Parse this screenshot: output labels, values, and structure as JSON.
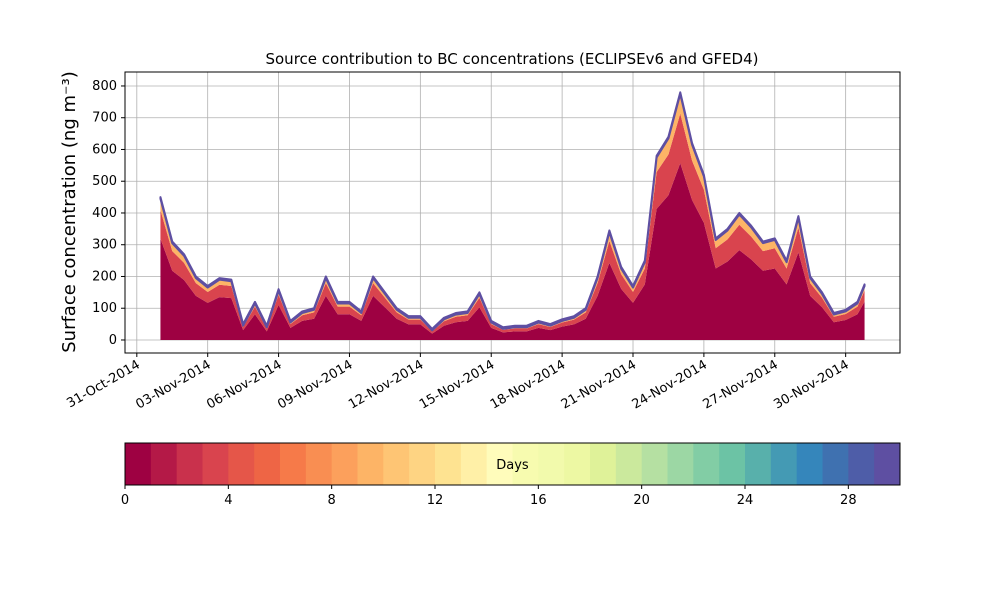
{
  "chart_data": {
    "type": "stacked_area",
    "title": "Source contribution to BC concentrations (ECLIPSEv6 and GFED4)",
    "y_label": "Surface concentration (ng m⁻³)",
    "x": [
      1,
      1.5,
      2,
      2.5,
      3,
      3.5,
      4,
      4.5,
      5,
      5.5,
      6,
      6.5,
      7,
      7.5,
      8,
      8.5,
      9,
      9.5,
      10,
      10.5,
      11,
      11.5,
      12,
      12.5,
      13,
      13.5,
      14,
      14.5,
      15,
      15.5,
      16,
      16.5,
      17,
      17.5,
      18,
      18.5,
      19,
      19.5,
      20,
      20.5,
      21,
      21.5,
      22,
      22.5,
      23,
      23.5,
      24,
      24.5,
      25,
      25.5,
      26,
      26.5,
      27,
      27.5,
      28,
      28.5,
      29,
      29.5,
      30,
      30.5,
      30.8
    ],
    "series": [
      {
        "color": "#9e0142",
        "values": [
          319,
          218,
          189,
          139,
          117,
          135,
          132,
          31,
          81,
          27,
          110,
          38,
          60,
          67,
          139,
          81,
          81,
          60,
          139,
          103,
          67,
          49,
          49,
          20,
          45,
          56,
          60,
          103,
          38,
          24,
          27,
          27,
          38,
          31,
          42,
          49,
          67,
          139,
          243,
          161,
          117,
          175,
          413,
          456,
          557,
          441,
          369,
          225,
          247,
          283,
          254,
          218,
          225,
          175,
          276,
          139,
          103,
          56,
          63,
          81,
          121
        ]
      },
      {
        "color": "#d9444e",
        "values": [
          90,
          62,
          54,
          40,
          34,
          39,
          38,
          10,
          24,
          9,
          32,
          12,
          18,
          20,
          40,
          24,
          24,
          18,
          40,
          30,
          20,
          15,
          15,
          7,
          14,
          17,
          18,
          30,
          12,
          8,
          9,
          9,
          12,
          10,
          13,
          15,
          20,
          40,
          69,
          46,
          34,
          50,
          116,
          128,
          156,
          124,
          104,
          64,
          70,
          80,
          72,
          62,
          64,
          50,
          78,
          40,
          30,
          17,
          19,
          24,
          35
        ]
      },
      {
        "color": "#fdb466",
        "values": [
          36,
          25,
          22,
          16,
          14,
          16,
          15,
          4,
          10,
          4,
          13,
          5,
          7,
          8,
          16,
          10,
          10,
          7,
          16,
          12,
          8,
          6,
          6,
          3,
          6,
          7,
          7,
          12,
          5,
          3,
          4,
          4,
          5,
          4,
          5,
          6,
          8,
          16,
          28,
          18,
          14,
          20,
          46,
          51,
          62,
          50,
          42,
          26,
          28,
          32,
          29,
          25,
          26,
          20,
          31,
          16,
          12,
          7,
          8,
          10,
          14
        ]
      },
      {
        "color": "#5e4fa2",
        "values": [
          5,
          5,
          5,
          5,
          5,
          5,
          5,
          5,
          5,
          5,
          5,
          5,
          5,
          5,
          5,
          5,
          5,
          5,
          5,
          5,
          5,
          5,
          5,
          5,
          5,
          5,
          5,
          5,
          5,
          5,
          5,
          5,
          5,
          5,
          5,
          5,
          5,
          5,
          5,
          5,
          5,
          5,
          5,
          5,
          5,
          5,
          5,
          5,
          5,
          5,
          5,
          5,
          5,
          5,
          5,
          5,
          5,
          5,
          5,
          5,
          5
        ]
      }
    ],
    "xlim": [
      -0.5,
      32.3
    ],
    "xticks": [
      {
        "value": 0,
        "label": "31-Oct-2014"
      },
      {
        "value": 3,
        "label": "03-Nov-2014"
      },
      {
        "value": 6,
        "label": "06-Nov-2014"
      },
      {
        "value": 9,
        "label": "09-Nov-2014"
      },
      {
        "value": 12,
        "label": "12-Nov-2014"
      },
      {
        "value": 15,
        "label": "15-Nov-2014"
      },
      {
        "value": 18,
        "label": "18-Nov-2014"
      },
      {
        "value": 21,
        "label": "21-Nov-2014"
      },
      {
        "value": 24,
        "label": "24-Nov-2014"
      },
      {
        "value": 27,
        "label": "27-Nov-2014"
      },
      {
        "value": 30,
        "label": "30-Nov-2014"
      }
    ],
    "ylim": [
      -41,
      844
    ],
    "yticks": [
      0,
      100,
      200,
      300,
      400,
      500,
      600,
      700,
      800
    ],
    "grid": true,
    "colorbar": {
      "label": "Days",
      "lim": [
        0,
        30
      ],
      "ticks": [
        0,
        4,
        8,
        12,
        16,
        20,
        24,
        28
      ],
      "colors": [
        "#9e0142",
        "#b41947",
        "#c9314c",
        "#d9444e",
        "#e55649",
        "#ee6545",
        "#f67a49",
        "#f98e52",
        "#fca05c",
        "#fdb466",
        "#fec574",
        "#fed483",
        "#fee391",
        "#fff0a7",
        "#fffcbb",
        "#f7fbaf",
        "#f2faac",
        "#edf8a3",
        "#dff299",
        "#cbe99d",
        "#b5e0a2",
        "#9cd7a4",
        "#82cda5",
        "#6cc3a5",
        "#58b0ab",
        "#449ab4",
        "#3586bb",
        "#3f71b0",
        "#4e5da8",
        "#5e4fa2"
      ]
    }
  }
}
